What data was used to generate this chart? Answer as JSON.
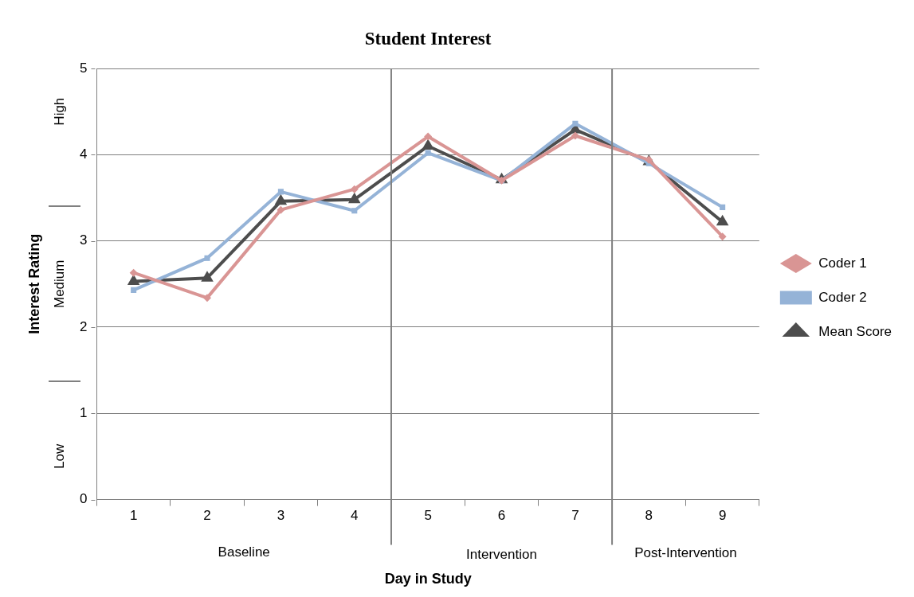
{
  "chart_data": {
    "type": "line",
    "title": "Student Interest",
    "xlabel": "Day in Study",
    "ylabel": "Interest Rating",
    "x": [
      1,
      2,
      3,
      4,
      5,
      6,
      7,
      8,
      9
    ],
    "xlim": [
      0.5,
      9.5
    ],
    "xticks": [
      {
        "value": 0.5,
        "label": null
      },
      1,
      {
        "value": 1.5,
        "label": null
      },
      2,
      {
        "value": 2.5,
        "label": null
      },
      3,
      {
        "value": 3.5,
        "label": null
      },
      4,
      {
        "value": 4.5,
        "label": null
      },
      5,
      {
        "value": 5.5,
        "label": null
      },
      6,
      {
        "value": 6.5,
        "label": null
      },
      7,
      {
        "value": 7.5,
        "label": null
      },
      8,
      {
        "value": 8.5,
        "label": null
      },
      9,
      {
        "value": 9.5,
        "label": null
      }
    ],
    "ylim": [
      0,
      5
    ],
    "yticks": [
      0,
      1,
      2,
      3,
      4,
      5
    ],
    "series": [
      {
        "name": "Coder 1",
        "color": "#d99594",
        "marker": "diamond",
        "values": [
          2.63,
          2.34,
          3.36,
          3.6,
          4.21,
          3.7,
          4.22,
          3.94,
          3.05
        ]
      },
      {
        "name": "Coder 2",
        "color": "#95b3d7",
        "marker": "square",
        "values": [
          2.43,
          2.8,
          3.57,
          3.35,
          4.02,
          3.7,
          4.36,
          3.9,
          3.39
        ]
      },
      {
        "name": "Mean Score",
        "color": "#4d4d4d",
        "marker": "triangle",
        "values": [
          2.53,
          2.57,
          3.46,
          3.48,
          4.1,
          3.71,
          4.29,
          3.92,
          3.22
        ]
      }
    ],
    "ref_lines": [
      {
        "axis": "x",
        "value": 4.5,
        "label": null,
        "color": "#808080"
      },
      {
        "axis": "x",
        "value": 7.5,
        "label": null,
        "color": "#808080"
      }
    ],
    "annotations": [
      "Baseline",
      "Intervention",
      "Post-Intervention",
      "High",
      "Medium",
      "Low"
    ],
    "grid": "y",
    "legend": "right",
    "line_style": "solid"
  }
}
